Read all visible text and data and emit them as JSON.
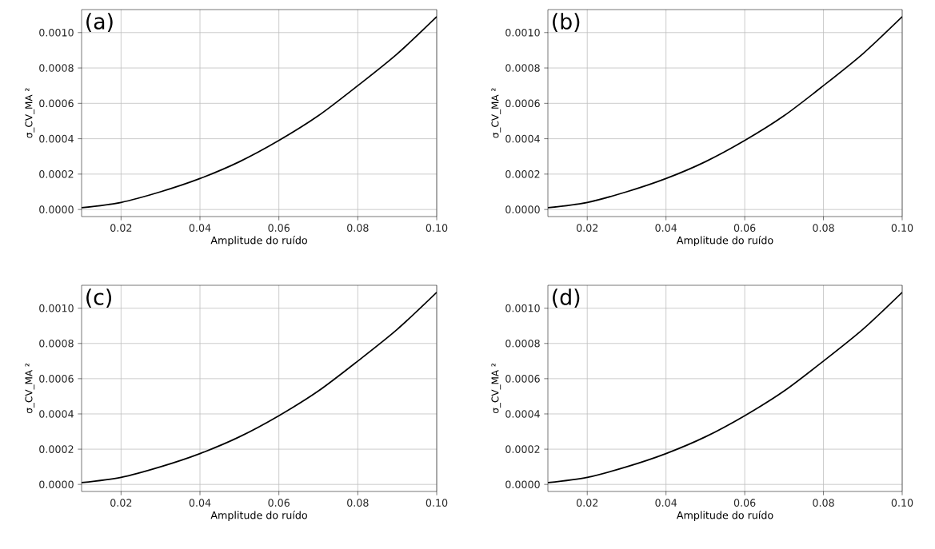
{
  "chart_data": [
    {
      "type": "line",
      "annotations": [
        "(a)"
      ],
      "xlabel": "Amplitude do ruído",
      "ylabel": "σ_CV_MA ²",
      "x": [
        0.01,
        0.02,
        0.03,
        0.04,
        0.05,
        0.06,
        0.07,
        0.08,
        0.09,
        0.1
      ],
      "series": [
        {
          "color": "#000000",
          "values": [
            1e-05,
            4e-05,
            0.0001,
            0.000175,
            0.00027,
            0.00039,
            0.00053,
            0.0007,
            0.00088,
            0.00109
          ]
        }
      ],
      "xlim": [
        0.01,
        0.1
      ],
      "ylim": [
        -4e-05,
        0.00113
      ],
      "xticks": [
        {
          "value": 0.02,
          "label": "0.02"
        },
        {
          "value": 0.04,
          "label": "0.04"
        },
        {
          "value": 0.06,
          "label": "0.06"
        },
        {
          "value": 0.08,
          "label": "0.08"
        },
        {
          "value": 0.1,
          "label": "0.10"
        }
      ],
      "yticks": [
        {
          "value": 0,
          "label": "0.0000"
        },
        {
          "value": 0.0002,
          "label": "0.0002"
        },
        {
          "value": 0.0004,
          "label": "0.0004"
        },
        {
          "value": 0.0006,
          "label": "0.0006"
        },
        {
          "value": 0.0008,
          "label": "0.0008"
        },
        {
          "value": 0.001,
          "label": "0.0010"
        }
      ],
      "grid": true
    },
    {
      "type": "line",
      "annotations": [
        "(b)"
      ],
      "xlabel": "Amplitude do ruído",
      "ylabel": "σ_CV_MA ²",
      "x": [
        0.01,
        0.02,
        0.03,
        0.04,
        0.05,
        0.06,
        0.07,
        0.08,
        0.09,
        0.1
      ],
      "series": [
        {
          "color": "#000000",
          "values": [
            1e-05,
            4e-05,
            0.0001,
            0.000175,
            0.00027,
            0.00039,
            0.00053,
            0.0007,
            0.00088,
            0.00109
          ]
        }
      ],
      "xlim": [
        0.01,
        0.1
      ],
      "ylim": [
        -4e-05,
        0.00113
      ],
      "xticks": [
        {
          "value": 0.02,
          "label": "0.02"
        },
        {
          "value": 0.04,
          "label": "0.04"
        },
        {
          "value": 0.06,
          "label": "0.06"
        },
        {
          "value": 0.08,
          "label": "0.08"
        },
        {
          "value": 0.1,
          "label": "0.10"
        }
      ],
      "yticks": [
        {
          "value": 0,
          "label": "0.0000"
        },
        {
          "value": 0.0002,
          "label": "0.0002"
        },
        {
          "value": 0.0004,
          "label": "0.0004"
        },
        {
          "value": 0.0006,
          "label": "0.0006"
        },
        {
          "value": 0.0008,
          "label": "0.0008"
        },
        {
          "value": 0.001,
          "label": "0.0010"
        }
      ],
      "grid": true
    },
    {
      "type": "line",
      "annotations": [
        "(c)"
      ],
      "xlabel": "Amplitude do ruído",
      "ylabel": "σ_CV_MA ²",
      "x": [
        0.01,
        0.02,
        0.03,
        0.04,
        0.05,
        0.06,
        0.07,
        0.08,
        0.09,
        0.1
      ],
      "series": [
        {
          "color": "#000000",
          "values": [
            1e-05,
            4e-05,
            0.0001,
            0.000175,
            0.00027,
            0.00039,
            0.00053,
            0.0007,
            0.00088,
            0.00109
          ]
        }
      ],
      "xlim": [
        0.01,
        0.1
      ],
      "ylim": [
        -4e-05,
        0.00113
      ],
      "xticks": [
        {
          "value": 0.02,
          "label": "0.02"
        },
        {
          "value": 0.04,
          "label": "0.04"
        },
        {
          "value": 0.06,
          "label": "0.06"
        },
        {
          "value": 0.08,
          "label": "0.08"
        },
        {
          "value": 0.1,
          "label": "0.10"
        }
      ],
      "yticks": [
        {
          "value": 0,
          "label": "0.0000"
        },
        {
          "value": 0.0002,
          "label": "0.0002"
        },
        {
          "value": 0.0004,
          "label": "0.0004"
        },
        {
          "value": 0.0006,
          "label": "0.0006"
        },
        {
          "value": 0.0008,
          "label": "0.0008"
        },
        {
          "value": 0.001,
          "label": "0.0010"
        }
      ],
      "grid": true
    },
    {
      "type": "line",
      "annotations": [
        "(d)"
      ],
      "xlabel": "Amplitude do ruído",
      "ylabel": "σ_CV_MA ²",
      "x": [
        0.01,
        0.02,
        0.03,
        0.04,
        0.05,
        0.06,
        0.07,
        0.08,
        0.09,
        0.1
      ],
      "series": [
        {
          "color": "#000000",
          "values": [
            1e-05,
            4e-05,
            0.0001,
            0.000175,
            0.00027,
            0.00039,
            0.00053,
            0.0007,
            0.00088,
            0.00109
          ]
        }
      ],
      "xlim": [
        0.01,
        0.1
      ],
      "ylim": [
        -4e-05,
        0.00113
      ],
      "xticks": [
        {
          "value": 0.02,
          "label": "0.02"
        },
        {
          "value": 0.04,
          "label": "0.04"
        },
        {
          "value": 0.06,
          "label": "0.06"
        },
        {
          "value": 0.08,
          "label": "0.08"
        },
        {
          "value": 0.1,
          "label": "0.10"
        }
      ],
      "yticks": [
        {
          "value": 0,
          "label": "0.0000"
        },
        {
          "value": 0.0002,
          "label": "0.0002"
        },
        {
          "value": 0.0004,
          "label": "0.0004"
        },
        {
          "value": 0.0006,
          "label": "0.0006"
        },
        {
          "value": 0.0008,
          "label": "0.0008"
        },
        {
          "value": 0.001,
          "label": "0.0010"
        }
      ],
      "grid": true
    }
  ]
}
